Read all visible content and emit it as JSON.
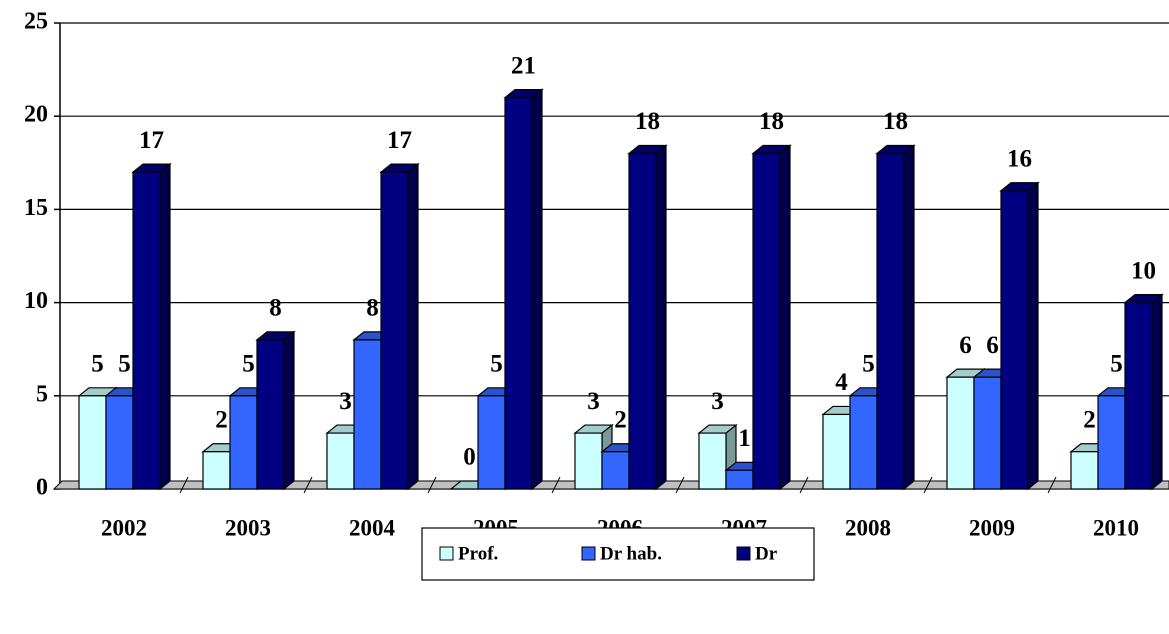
{
  "chart_data": {
    "type": "bar",
    "categories": [
      "2002",
      "2003",
      "2004",
      "2005",
      "2006",
      "2007",
      "2008",
      "2009",
      "2010"
    ],
    "series": [
      {
        "name": "Prof.",
        "color": "#ccffff",
        "values": [
          5,
          2,
          3,
          0,
          3,
          3,
          4,
          6,
          2
        ]
      },
      {
        "name": "Dr hab.",
        "color": "#3366ff",
        "values": [
          5,
          5,
          8,
          5,
          2,
          1,
          5,
          6,
          5
        ]
      },
      {
        "name": "Dr",
        "color": "#000080",
        "values": [
          17,
          8,
          17,
          21,
          18,
          18,
          18,
          16,
          10
        ]
      }
    ],
    "ylim": [
      0,
      25
    ],
    "yticks": [
      0,
      5,
      10,
      15,
      20,
      25
    ],
    "grid": true,
    "legend": "bottom"
  }
}
